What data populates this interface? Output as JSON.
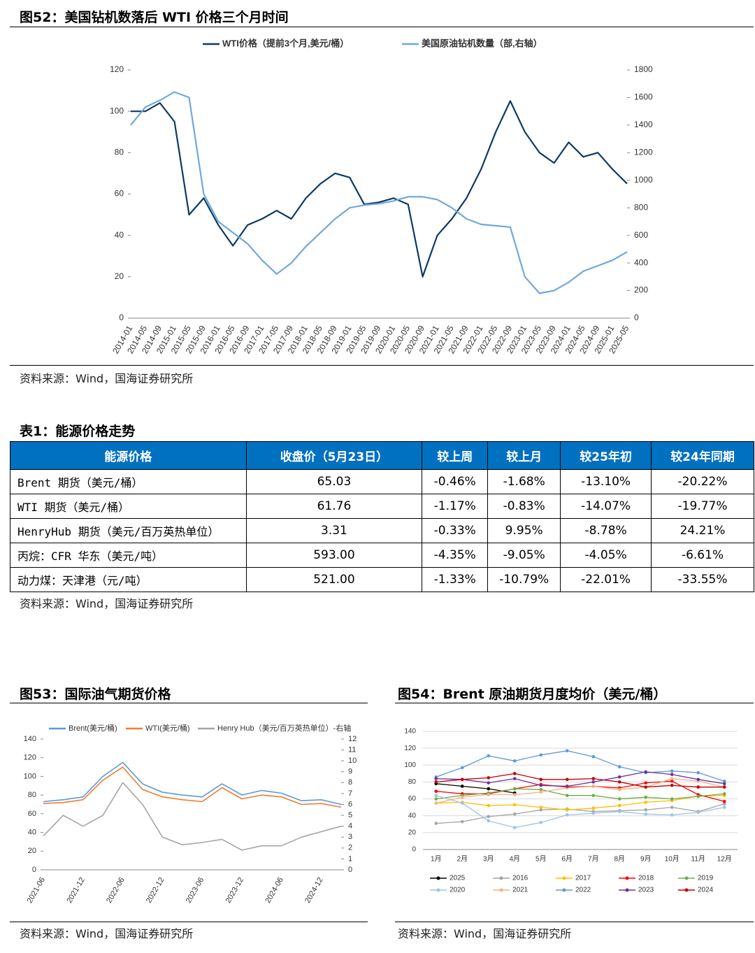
{
  "chart_data": [
    {
      "type": "line",
      "title": "图52：美国钻机数落后 WTI 价格三个月时间",
      "source": "资料来源：Wind，国海证券研究所",
      "categories": [
        "2014-01",
        "2014-05",
        "2014-09",
        "2015-01",
        "2015-05",
        "2015-09",
        "2016-01",
        "2016-05",
        "2016-09",
        "2017-01",
        "2017-05",
        "2017-09",
        "2018-01",
        "2018-05",
        "2018-09",
        "2019-01",
        "2019-05",
        "2019-09",
        "2020-01",
        "2020-05",
        "2020-09",
        "2021-01",
        "2021-05",
        "2021-09",
        "2022-01",
        "2022-05",
        "2022-09",
        "2023-01",
        "2023-05",
        "2023-09",
        "2024-01",
        "2024-05",
        "2024-09",
        "2025-01",
        "2025-05"
      ],
      "series": [
        {
          "name": "WTI价格（提前3个月,美元/桶）",
          "color": "#0b3a66",
          "values": [
            100,
            100,
            104,
            95,
            50,
            58,
            45,
            35,
            45,
            48,
            52,
            48,
            58,
            65,
            70,
            68,
            55,
            56,
            58,
            55,
            20,
            40,
            48,
            58,
            72,
            90,
            105,
            90,
            80,
            75,
            85,
            78,
            80,
            72,
            65
          ]
        },
        {
          "name": "美国原油钻机数量（部,右轴）",
          "color": "#6fa8dc",
          "axis": "y2",
          "values": [
            1400,
            1530,
            1580,
            1640,
            1600,
            900,
            700,
            620,
            540,
            420,
            320,
            400,
            520,
            620,
            720,
            800,
            820,
            830,
            850,
            880,
            880,
            860,
            800,
            720,
            680,
            670,
            660,
            300,
            180,
            200,
            260,
            340,
            380,
            420,
            480
          ]
        }
      ],
      "ylim": [
        0,
        120
      ],
      "yticks": [
        0,
        20,
        40,
        60,
        80,
        100,
        120
      ],
      "y2lim": [
        0,
        1800
      ],
      "y2ticks": [
        0,
        200,
        400,
        600,
        800,
        1000,
        1200,
        1400,
        1600,
        1800
      ]
    },
    {
      "type": "line",
      "title": "图53：国际油气期货价格",
      "source": "资料来源：Wind，国海证券研究所",
      "categories": [
        "2021-06",
        null,
        "2021-12",
        null,
        "2022-06",
        null,
        "2022-12",
        null,
        "2023-06",
        null,
        "2023-12",
        null,
        "2024-06",
        null,
        "2024-12",
        null
      ],
      "series": [
        {
          "name": "Brent(美元/桶)",
          "color": "#5b9bd5",
          "values": [
            73,
            75,
            78,
            100,
            115,
            92,
            83,
            80,
            78,
            92,
            80,
            85,
            82,
            74,
            75,
            70
          ]
        },
        {
          "name": "WTI(美元/桶)",
          "color": "#ed7d31",
          "values": [
            71,
            72,
            75,
            96,
            110,
            86,
            78,
            75,
            73,
            88,
            76,
            80,
            78,
            70,
            71,
            67
          ]
        },
        {
          "name": "Henry Hub（美元/百万英热单位）-右轴",
          "color": "#a5a5a5",
          "axis": "y2",
          "values": [
            3.1,
            5,
            4,
            5,
            8,
            6,
            3,
            2.3,
            2.5,
            2.8,
            1.8,
            2.2,
            2.2,
            3,
            3.5,
            4
          ]
        }
      ],
      "ylim": [
        0,
        140
      ],
      "yticks": [
        0,
        20,
        40,
        60,
        80,
        100,
        120,
        140
      ],
      "y2lim": [
        0,
        12
      ],
      "y2ticks": [
        0,
        1,
        2,
        3,
        4,
        5,
        6,
        7,
        8,
        9,
        10,
        11,
        12
      ]
    },
    {
      "type": "line",
      "title": "图54：Brent 原油期货月度均价（美元/桶）",
      "source": "资料来源：Wind，国海证券研究所",
      "grid": true,
      "categories": [
        "1月",
        "2月",
        "3月",
        "4月",
        "5月",
        "6月",
        "7月",
        "8月",
        "9月",
        "10月",
        "11月",
        "12月"
      ],
      "series": [
        {
          "name": "2025",
          "color": "#000000",
          "values": [
            78,
            75,
            72,
            67,
            null,
            null,
            null,
            null,
            null,
            null,
            null,
            null
          ]
        },
        {
          "name": "2016",
          "color": "#a5a5a5",
          "values": [
            31,
            33,
            39,
            42,
            47,
            48,
            45,
            46,
            47,
            50,
            45,
            54
          ]
        },
        {
          "name": "2017",
          "color": "#ffc000",
          "values": [
            55,
            56,
            52,
            53,
            50,
            47,
            49,
            52,
            56,
            58,
            63,
            64
          ]
        },
        {
          "name": "2018",
          "color": "#ff0000",
          "values": [
            69,
            66,
            66,
            72,
            77,
            74,
            75,
            73,
            79,
            81,
            65,
            57
          ]
        },
        {
          "name": "2019",
          "color": "#70ad47",
          "values": [
            60,
            64,
            67,
            72,
            71,
            64,
            64,
            60,
            62,
            60,
            63,
            66
          ]
        },
        {
          "name": "2020",
          "color": "#9dc3e6",
          "values": [
            64,
            55,
            34,
            26,
            32,
            41,
            43,
            45,
            42,
            41,
            44,
            50
          ]
        },
        {
          "name": "2021",
          "color": "#f4b183",
          "values": [
            55,
            62,
            65,
            65,
            68,
            73,
            75,
            71,
            74,
            84,
            81,
            74
          ]
        },
        {
          "name": "2022",
          "color": "#5b9bd5",
          "values": [
            86,
            97,
            111,
            105,
            112,
            117,
            110,
            98,
            91,
            93,
            91,
            81
          ]
        },
        {
          "name": "2023",
          "color": "#7030a0",
          "values": [
            84,
            83,
            79,
            84,
            76,
            75,
            80,
            86,
            92,
            89,
            83,
            78
          ]
        },
        {
          "name": "2024",
          "color": "#c00000",
          "values": [
            80,
            83,
            85,
            90,
            83,
            83,
            84,
            80,
            74,
            76,
            74,
            74
          ]
        }
      ],
      "ylim": [
        0,
        140
      ],
      "yticks": [
        0,
        20,
        40,
        60,
        80,
        100,
        120,
        140
      ]
    }
  ],
  "table": {
    "title": "表1：能源价格走势",
    "source": "资料来源：Wind，国海证券研究所",
    "header": [
      "能源价格",
      "收盘价（5月23日）",
      "较上周",
      "较上月",
      "较25年初",
      "较24年同期"
    ],
    "rows": [
      [
        "Brent 期货（美元/桶）",
        "65.03",
        "-0.46%",
        "-1.68%",
        "-13.10%",
        "-20.22%"
      ],
      [
        "WTI 期货（美元/桶）",
        "61.76",
        "-1.17%",
        "-0.83%",
        "-14.07%",
        "-19.77%"
      ],
      [
        "HenryHub 期货（美元/百万英热单位）",
        "3.31",
        "-0.33%",
        "9.95%",
        "-8.78%",
        "24.21%"
      ],
      [
        "丙烷：CFR 华东（美元/吨）",
        "593.00",
        "-4.35%",
        "-9.05%",
        "-4.05%",
        "-6.61%"
      ],
      [
        "动力煤：天津港（元/吨）",
        "521.00",
        "-1.33%",
        "-10.79%",
        "-22.01%",
        "-33.55%"
      ]
    ]
  }
}
